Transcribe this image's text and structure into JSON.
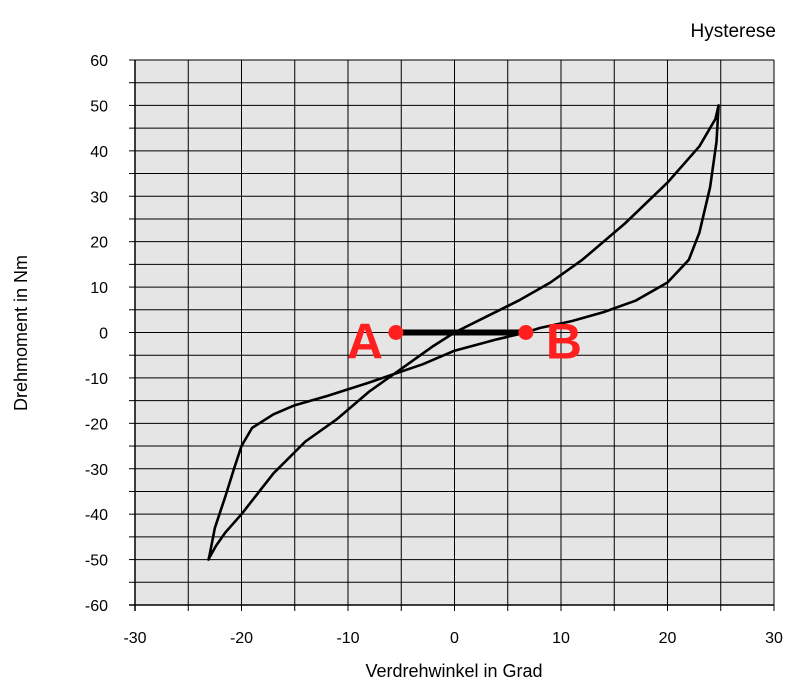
{
  "chart_data": {
    "type": "line",
    "title": "Hysterese",
    "xlabel": "Verdrehwinkel in Grad",
    "ylabel": "Drehmoment in Nm",
    "xlim": [
      -30,
      30
    ],
    "ylim": [
      -60,
      60
    ],
    "xticks": [
      -30,
      -20,
      -10,
      0,
      10,
      20,
      30
    ],
    "yticks": [
      60,
      50,
      40,
      30,
      20,
      10,
      0,
      -10,
      -20,
      -30,
      -40,
      -50,
      -60
    ],
    "x_gridlines": [
      -30,
      -25,
      -20,
      -15,
      -10,
      -5,
      0,
      5,
      10,
      15,
      20,
      25,
      30
    ],
    "y_gridlines": [
      -60,
      -55,
      -50,
      -45,
      -40,
      -35,
      -30,
      -25,
      -20,
      -15,
      -10,
      -5,
      0,
      5,
      10,
      15,
      20,
      25,
      30,
      35,
      40,
      45,
      50,
      55,
      60
    ],
    "grid": true,
    "background_color": "#e5e5e5",
    "series": [
      {
        "x": [
          24.8,
          24.6,
          24.0,
          23.0,
          22.0,
          20.0,
          17.0,
          14.0,
          11.0,
          8.0,
          6.7,
          4.0,
          0.0,
          -3.0,
          -5.5,
          -8.0,
          -12.0,
          -15.0,
          -17.0,
          -19.0,
          -20.0,
          -20.7,
          -21.5,
          -22.5,
          -23.0,
          -23.1,
          -23.0,
          -22.4,
          -21.5,
          -20.0,
          -17.0,
          -14.0,
          -11.0,
          -8.0,
          -5.0,
          -2.0,
          0.0,
          3.0,
          6.0,
          9.0,
          12.0,
          16.0,
          20.0,
          23.0,
          24.5,
          24.8
        ],
        "y": [
          50.0,
          42.0,
          32.0,
          22.0,
          16.0,
          11.0,
          7.0,
          4.5,
          2.5,
          1.0,
          0.0,
          -1.5,
          -4.0,
          -7.0,
          -9.0,
          -11.0,
          -14.0,
          -16.0,
          -18.0,
          -21.0,
          -25.0,
          -30.0,
          -36.0,
          -43.0,
          -49.0,
          -50.0,
          -49.5,
          -47.0,
          -44.0,
          -40.0,
          -31.0,
          -24.0,
          -19.0,
          -13.0,
          -8.0,
          -3.0,
          0.0,
          3.5,
          7.0,
          11.0,
          16.0,
          24.0,
          33.0,
          41.0,
          47.0,
          50.0
        ],
        "color": "#000000"
      },
      {
        "x": [
          -5.5,
          6.7
        ],
        "y": [
          0,
          0
        ],
        "color": "#000000",
        "style": "thick"
      }
    ],
    "annotations": [
      {
        "text": "A",
        "x": -5.5,
        "y": 0,
        "color": "#ff1f1f"
      },
      {
        "text": "B",
        "x": 6.7,
        "y": 0,
        "color": "#ff1f1f"
      }
    ]
  }
}
